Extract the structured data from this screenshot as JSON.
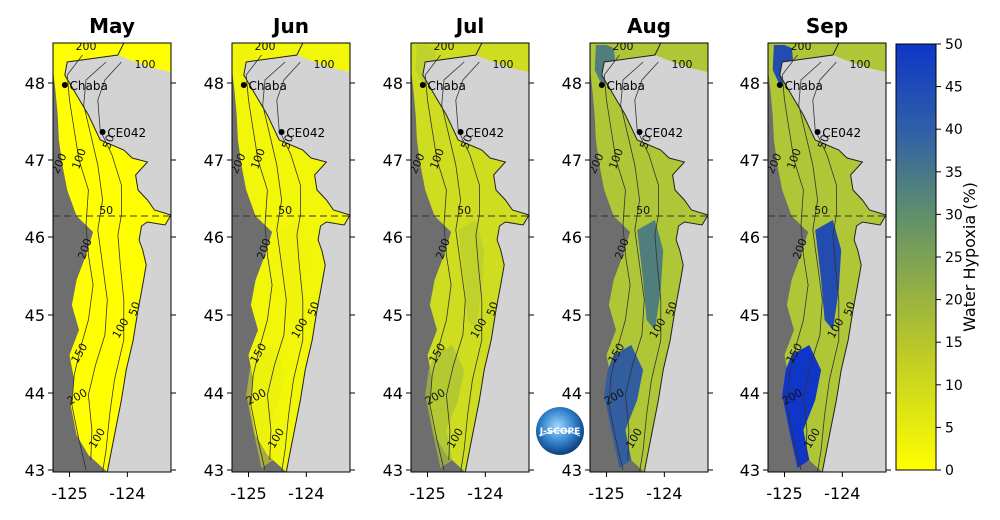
{
  "panels": [
    {
      "month": "May",
      "hypoxia_level": 0
    },
    {
      "month": "Jun",
      "hypoxia_level": 0.08
    },
    {
      "month": "Jul",
      "hypoxia_level": 0.3
    },
    {
      "month": "Aug",
      "hypoxia_level": 0.75
    },
    {
      "month": "Sep",
      "hypoxia_level": 1
    }
  ],
  "lat_ticks": [
    "48",
    "47",
    "46",
    "45",
    "44",
    "43"
  ],
  "lon_ticks": [
    "-125",
    "-124"
  ],
  "stations": {
    "chaba": "Chaba",
    "ce042": "CE042"
  },
  "contour_labels": {
    "c200": "200",
    "c150": "150",
    "c100": "100",
    "c50": "50"
  },
  "colorbar": {
    "label": "Water Hypoxia (%)",
    "ticks": [
      "50",
      "45",
      "40",
      "35",
      "30",
      "25",
      "20",
      "15",
      "10",
      "5",
      "0"
    ],
    "range": [
      0,
      50
    ],
    "colors": {
      "low": "#ffff00",
      "mid": "#5f8f6b",
      "high": "#0f36c8"
    }
  },
  "logo": "J-SCOPE",
  "colors": {
    "land": "#d3d3d3",
    "deep_ocean": "#6e6e6e",
    "shelf": "#ffff00"
  }
}
